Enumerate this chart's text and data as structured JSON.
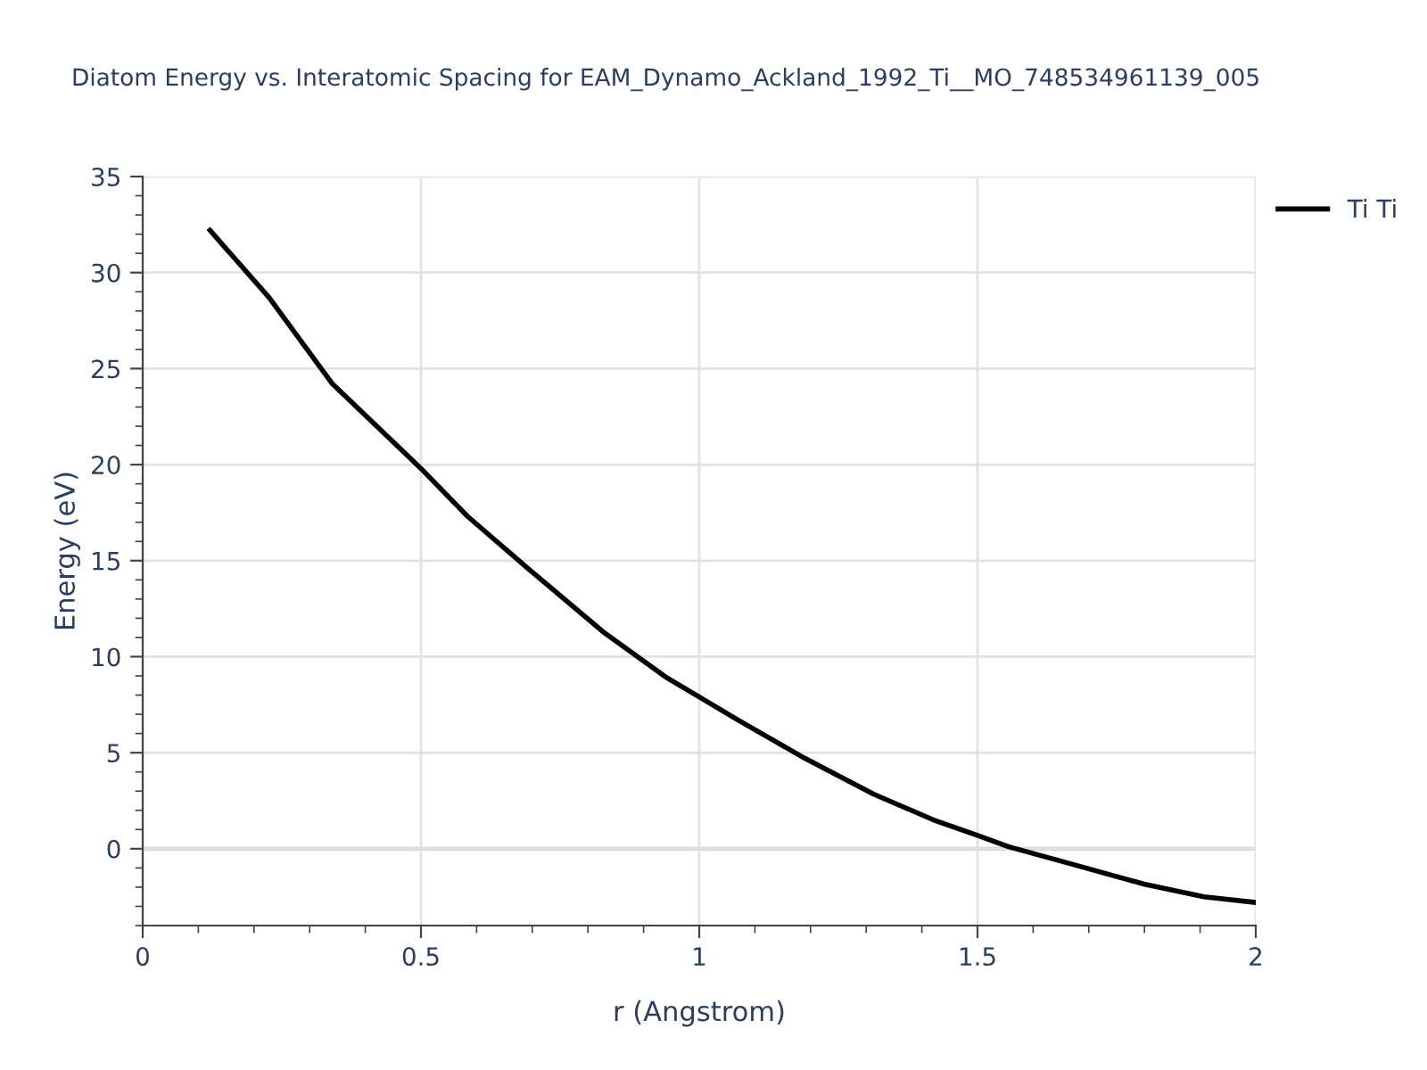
{
  "chart_data": {
    "type": "line",
    "title": "Diatom Energy vs. Interatomic Spacing for EAM_Dynamo_Ackland_1992_Ti__MO_748534961139_005",
    "xlabel": "r (Angstrom)",
    "ylabel": "Energy (eV)",
    "series": [
      {
        "name": "Ti Ti",
        "color": "#000000",
        "x": [
          0.121,
          0.227,
          0.341,
          0.5,
          0.584,
          0.692,
          0.827,
          0.942,
          1.0,
          1.07,
          1.184,
          1.313,
          1.421,
          1.5,
          1.556,
          1.677,
          1.799,
          1.907,
          2.0
        ],
        "values": [
          32.2,
          28.7,
          24.2,
          19.8,
          17.3,
          14.6,
          11.3,
          8.9,
          7.9,
          6.7,
          4.8,
          2.85,
          1.5,
          0.7,
          0.1,
          -0.86,
          -1.84,
          -2.5,
          -2.8
        ]
      }
    ],
    "xlim": [
      0,
      2
    ],
    "xticks": [
      0,
      0.5,
      1,
      1.5,
      2
    ],
    "ylim": [
      -4,
      35
    ],
    "yticks": [
      0,
      5,
      10,
      15,
      20,
      25,
      30,
      35
    ],
    "grid": true,
    "legend": "top right",
    "marker": "none",
    "line_style": "solid"
  }
}
